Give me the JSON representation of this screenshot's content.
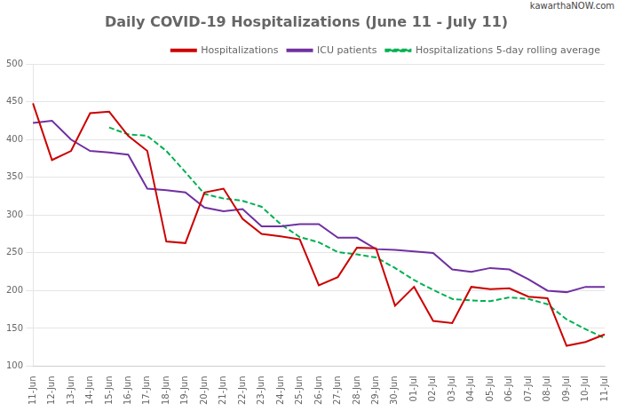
{
  "chart_data": {
    "type": "line",
    "title": "Daily COVID-19 Hospitalizations (June 11 - July 11)",
    "annotations": [
      "kawarthaNOW.com"
    ],
    "categories": [
      "11-Jun",
      "12-Jun",
      "13-Jun",
      "14-Jun",
      "15-Jun",
      "16-Jun",
      "17-Jun",
      "18-Jun",
      "19-Jun",
      "20-Jun",
      "21-Jun",
      "22-Jun",
      "23-Jun",
      "24-Jun",
      "25-Jun",
      "26-Jun",
      "27-Jun",
      "28-Jun",
      "29-Jun",
      "30-Jun",
      "01-Jul",
      "02-Jul",
      "03-Jul",
      "04-Jul",
      "05-Jul",
      "06-Jul",
      "07-Jul",
      "08-Jul",
      "09-Jul",
      "10-Jul",
      "11-Jul"
    ],
    "series": [
      {
        "name": "Hospitalizations",
        "color": "#cc0000",
        "line_style": "solid",
        "values": [
          448,
          373,
          385,
          435,
          437,
          405,
          385,
          265,
          263,
          330,
          335,
          295,
          275,
          272,
          268,
          207,
          218,
          257,
          256,
          180,
          205,
          160,
          157,
          205,
          202,
          203,
          192,
          190,
          127,
          132,
          142
        ]
      },
      {
        "name": "ICU patients",
        "color": "#7030a0",
        "line_style": "solid",
        "values": [
          422,
          425,
          400,
          385,
          383,
          380,
          335,
          333,
          330,
          310,
          305,
          308,
          285,
          285,
          288,
          288,
          270,
          270,
          255,
          254,
          252,
          250,
          228,
          225,
          230,
          228,
          215,
          200,
          198,
          205,
          205
        ]
      },
      {
        "name": "Hospitalizations 5-day rolling average",
        "color": "#00b050",
        "line_style": "dashed",
        "values": [
          null,
          null,
          null,
          null,
          416,
          407,
          405,
          385,
          357,
          328,
          322,
          319,
          311,
          288,
          271,
          264,
          251,
          248,
          244,
          230,
          214,
          201,
          189,
          187,
          186,
          191,
          189,
          182,
          162,
          149,
          137
        ]
      }
    ],
    "ylim": [
      100,
      500
    ],
    "yticks": [
      100,
      150,
      200,
      250,
      300,
      350,
      400,
      450,
      500
    ],
    "grid": "y",
    "legend": "upper right"
  }
}
